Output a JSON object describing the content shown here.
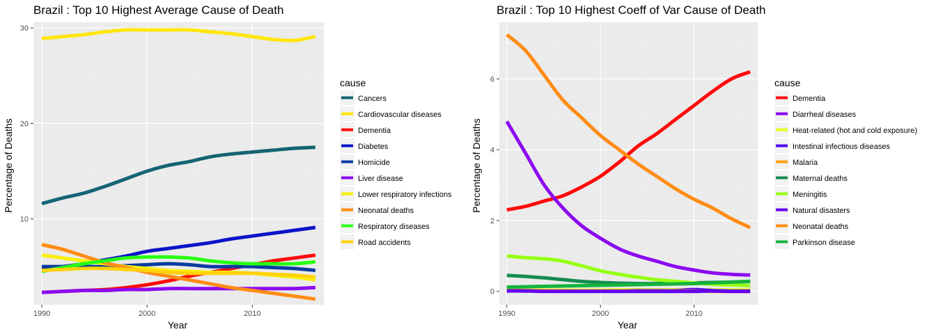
{
  "chart_data": [
    {
      "type": "line",
      "title": "Brazil : Top  10  Highest Average Cause of Death",
      "xlabel": "Year",
      "ylabel": "Percentage of Deaths",
      "xlim": [
        1989.2,
        2016.8
      ],
      "ylim": [
        1.0,
        30.6
      ],
      "xticks": [
        1990,
        2000,
        2010
      ],
      "yticks": [
        10,
        20,
        30
      ],
      "grid": true,
      "legend_title": "cause",
      "legend_position": "right",
      "series": [
        {
          "name": "Cancers",
          "color": "#146473",
          "x": [
            1990,
            1992,
            1994,
            1996,
            1998,
            2000,
            2002,
            2004,
            2006,
            2008,
            2010,
            2012,
            2014,
            2016
          ],
          "y": [
            11.6,
            12.2,
            12.7,
            13.4,
            14.2,
            15.0,
            15.6,
            16.0,
            16.5,
            16.8,
            17.0,
            17.2,
            17.4,
            17.5
          ]
        },
        {
          "name": "Cardiovascular diseases",
          "color": "#FFE60A",
          "x": [
            1990,
            1992,
            1994,
            1996,
            1998,
            2000,
            2002,
            2004,
            2006,
            2008,
            2010,
            2012,
            2014,
            2016
          ],
          "y": [
            28.9,
            29.1,
            29.3,
            29.6,
            29.8,
            29.8,
            29.8,
            29.8,
            29.6,
            29.4,
            29.1,
            28.8,
            28.7,
            29.1
          ]
        },
        {
          "name": "Dementia",
          "color": "#FF0A0A",
          "x": [
            1990,
            1992,
            1994,
            1996,
            1998,
            2000,
            2002,
            2004,
            2006,
            2008,
            2010,
            2012,
            2014,
            2016
          ],
          "y": [
            2.3,
            2.4,
            2.5,
            2.6,
            2.8,
            3.1,
            3.5,
            4.0,
            4.4,
            4.8,
            5.2,
            5.6,
            5.9,
            6.2
          ]
        },
        {
          "name": "Diabetes",
          "color": "#0A14C8",
          "x": [
            1990,
            1992,
            1994,
            1996,
            1998,
            2000,
            2002,
            2004,
            2006,
            2008,
            2010,
            2012,
            2014,
            2016
          ],
          "y": [
            4.8,
            5.0,
            5.3,
            5.7,
            6.1,
            6.6,
            6.9,
            7.2,
            7.5,
            7.9,
            8.2,
            8.5,
            8.8,
            9.1
          ]
        },
        {
          "name": "Homicide",
          "color": "#0A3CA0",
          "x": [
            1990,
            1992,
            1994,
            1996,
            1998,
            2000,
            2002,
            2004,
            2006,
            2008,
            2010,
            2012,
            2014,
            2016
          ],
          "y": [
            5.0,
            5.0,
            5.0,
            5.0,
            5.1,
            5.2,
            5.3,
            5.2,
            5.0,
            5.0,
            5.0,
            4.9,
            4.8,
            4.6
          ]
        },
        {
          "name": "Liver disease",
          "color": "#8C0AF0",
          "x": [
            1990,
            1992,
            1994,
            1996,
            1998,
            2000,
            2002,
            2004,
            2006,
            2008,
            2010,
            2012,
            2014,
            2016
          ],
          "y": [
            2.3,
            2.4,
            2.5,
            2.5,
            2.6,
            2.6,
            2.7,
            2.7,
            2.7,
            2.7,
            2.7,
            2.7,
            2.7,
            2.8
          ]
        },
        {
          "name": "Lower respiratory infections",
          "color": "#FAF00A",
          "x": [
            1990,
            1992,
            1994,
            1996,
            1998,
            2000,
            2002,
            2004,
            2006,
            2008,
            2010,
            2012,
            2014,
            2016
          ],
          "y": [
            6.2,
            5.9,
            5.6,
            5.3,
            5.0,
            4.8,
            4.6,
            4.5,
            4.4,
            4.4,
            4.3,
            4.1,
            3.9,
            3.6
          ]
        },
        {
          "name": "Neonatal deaths",
          "color": "#FF8C14",
          "x": [
            1990,
            1992,
            1994,
            1996,
            1998,
            2000,
            2002,
            2004,
            2006,
            2008,
            2010,
            2012,
            2014,
            2016
          ],
          "y": [
            7.3,
            6.8,
            6.1,
            5.4,
            4.9,
            4.4,
            4.0,
            3.6,
            3.2,
            2.8,
            2.5,
            2.2,
            1.9,
            1.6
          ]
        },
        {
          "name": "Respiratory diseases",
          "color": "#28FF14",
          "x": [
            1990,
            1992,
            1994,
            1996,
            1998,
            2000,
            2002,
            2004,
            2006,
            2008,
            2010,
            2012,
            2014,
            2016
          ],
          "y": [
            4.5,
            4.9,
            5.3,
            5.6,
            5.9,
            6.0,
            6.0,
            5.9,
            5.6,
            5.4,
            5.3,
            5.3,
            5.3,
            5.5
          ]
        },
        {
          "name": "Road accidents",
          "color": "#FFD20A",
          "x": [
            1990,
            1992,
            1994,
            1996,
            1998,
            2000,
            2002,
            2004,
            2006,
            2008,
            2010,
            2012,
            2014,
            2016
          ],
          "y": [
            4.6,
            4.7,
            4.8,
            4.8,
            4.7,
            4.6,
            4.4,
            4.3,
            4.3,
            4.3,
            4.3,
            4.2,
            4.1,
            3.9
          ]
        }
      ]
    },
    {
      "type": "line",
      "title": "Brazil : Top  10  Highest Coeff of Var Cause of Death",
      "xlabel": "Year",
      "ylabel": "Percentage of Deaths",
      "xlim": [
        1989.2,
        2016.8
      ],
      "ylim": [
        -0.38,
        7.6
      ],
      "xticks": [
        1990,
        2000,
        2010
      ],
      "yticks": [
        0,
        2,
        4,
        6
      ],
      "grid": true,
      "legend_title": "cause",
      "legend_position": "right",
      "series": [
        {
          "name": "Dementia",
          "color": "#FF0A0A",
          "x": [
            1990,
            1992,
            1994,
            1996,
            1998,
            2000,
            2002,
            2004,
            2006,
            2008,
            2010,
            2012,
            2014,
            2016
          ],
          "y": [
            2.3,
            2.4,
            2.55,
            2.7,
            2.95,
            3.25,
            3.65,
            4.1,
            4.45,
            4.85,
            5.25,
            5.65,
            6.0,
            6.2
          ]
        },
        {
          "name": "Diarrheal diseases",
          "color": "#8C0AF0",
          "x": [
            1990,
            1992,
            1994,
            1996,
            1998,
            2000,
            2002,
            2004,
            2006,
            2008,
            2010,
            2012,
            2014,
            2016
          ],
          "y": [
            4.8,
            3.9,
            3.0,
            2.35,
            1.85,
            1.5,
            1.2,
            1.0,
            0.85,
            0.7,
            0.6,
            0.52,
            0.48,
            0.46
          ]
        },
        {
          "name": "Heat-related (hot and cold exposure)",
          "color": "#E6FF1E",
          "x": [
            1990,
            1992,
            1994,
            1996,
            1998,
            2000,
            2002,
            2004,
            2006,
            2008,
            2010,
            2012,
            2014,
            2016
          ],
          "y": [
            0.03,
            0.03,
            0.03,
            0.03,
            0.03,
            0.03,
            0.04,
            0.04,
            0.04,
            0.04,
            0.04,
            0.04,
            0.04,
            0.04
          ]
        },
        {
          "name": "Intestinal infectious diseases",
          "color": "#500AF0",
          "x": [
            1990,
            1992,
            1994,
            1996,
            1998,
            2000,
            2002,
            2004,
            2006,
            2008,
            2010,
            2012,
            2014,
            2016
          ],
          "y": [
            0.02,
            0.02,
            0.01,
            0.01,
            0.01,
            0.01,
            0.01,
            0.02,
            0.02,
            0.02,
            0.05,
            0.02,
            0.01,
            0.01
          ]
        },
        {
          "name": "Malaria",
          "color": "#FFA014",
          "x": [
            1990,
            1992,
            1994,
            1996,
            1998,
            2000,
            2002,
            2004,
            2006,
            2008,
            2010,
            2012,
            2014,
            2016
          ],
          "y": [
            0.02,
            0.02,
            0.02,
            0.01,
            0.01,
            0.01,
            0.01,
            0.01,
            0.01,
            0.01,
            0.01,
            0.0,
            0.0,
            0.0
          ]
        },
        {
          "name": "Maternal deaths",
          "color": "#148C50",
          "x": [
            1990,
            1992,
            1994,
            1996,
            1998,
            2000,
            2002,
            2004,
            2006,
            2008,
            2010,
            2012,
            2014,
            2016
          ],
          "y": [
            0.45,
            0.42,
            0.38,
            0.33,
            0.28,
            0.25,
            0.23,
            0.22,
            0.22,
            0.23,
            0.24,
            0.25,
            0.26,
            0.28
          ]
        },
        {
          "name": "Meningitis",
          "color": "#96FF14",
          "x": [
            1990,
            1992,
            1994,
            1996,
            1998,
            2000,
            2002,
            2004,
            2006,
            2008,
            2010,
            2012,
            2014,
            2016
          ],
          "y": [
            1.0,
            0.95,
            0.92,
            0.85,
            0.72,
            0.58,
            0.48,
            0.4,
            0.33,
            0.28,
            0.24,
            0.2,
            0.18,
            0.16
          ]
        },
        {
          "name": "Natural disasters",
          "color": "#6400F0",
          "x": [
            1990,
            1992,
            1994,
            1996,
            1998,
            2000,
            2002,
            2004,
            2006,
            2008,
            2010,
            2012,
            2014,
            2016
          ],
          "y": [
            0.01,
            0.01,
            0.0,
            0.0,
            0.0,
            0.0,
            0.0,
            0.0,
            0.0,
            0.0,
            0.0,
            0.01,
            0.0,
            0.0
          ]
        },
        {
          "name": "Neonatal deaths",
          "color": "#FF8C14",
          "x": [
            1990,
            1992,
            1994,
            1996,
            1998,
            2000,
            2002,
            2004,
            2006,
            2008,
            2010,
            2012,
            2014,
            2016
          ],
          "y": [
            7.25,
            6.8,
            6.1,
            5.4,
            4.9,
            4.4,
            4.0,
            3.6,
            3.25,
            2.9,
            2.6,
            2.35,
            2.05,
            1.8
          ]
        },
        {
          "name": "Parkinson disease",
          "color": "#14B43C",
          "x": [
            1990,
            1992,
            1994,
            1996,
            1998,
            2000,
            2002,
            2004,
            2006,
            2008,
            2010,
            2012,
            2014,
            2016
          ],
          "y": [
            0.12,
            0.13,
            0.14,
            0.15,
            0.16,
            0.17,
            0.18,
            0.19,
            0.2,
            0.21,
            0.22,
            0.24,
            0.26,
            0.28
          ]
        }
      ]
    }
  ]
}
